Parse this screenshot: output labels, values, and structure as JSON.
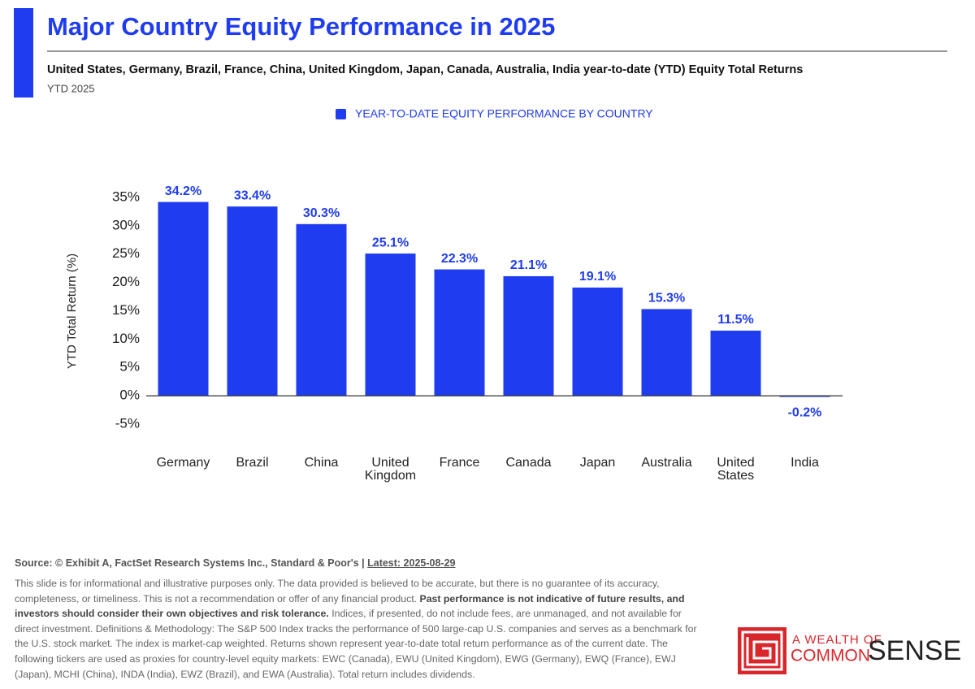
{
  "chart_data": {
    "type": "bar",
    "title": "Major Country Equity Performance in 2025",
    "subtitle": "United States, Germany, Brazil, France, China, United Kingdom, Japan, Canada, Australia, India year-to-date (YTD) Equity Total Returns",
    "period": "YTD 2025",
    "y_label": "YTD Total Return (%)",
    "categories": [
      "Germany",
      "Brazil",
      "China",
      "United Kingdom",
      "France",
      "Canada",
      "Japan",
      "Australia",
      "United States",
      "India"
    ],
    "series": [
      {
        "name": "YEAR-TO-DATE EQUITY PERFORMANCE BY COUNTRY",
        "color": "#1f3cf0",
        "values": [
          34.2,
          33.4,
          30.3,
          25.1,
          22.3,
          21.1,
          19.1,
          15.3,
          11.5,
          -0.2
        ],
        "value_labels": [
          "34.2%",
          "33.4%",
          "30.3%",
          "25.1%",
          "22.3%",
          "21.1%",
          "19.1%",
          "15.3%",
          "11.5%",
          "-0.2%"
        ]
      }
    ],
    "ylim": [
      -5,
      35
    ],
    "yticks": [
      {
        "value": -5,
        "label": "-5%"
      },
      {
        "value": 0,
        "label": "0%"
      },
      {
        "value": 5,
        "label": "5%"
      },
      {
        "value": 10,
        "label": "10%"
      },
      {
        "value": 15,
        "label": "15%"
      },
      {
        "value": 20,
        "label": "20%"
      },
      {
        "value": 25,
        "label": "25%"
      },
      {
        "value": 30,
        "label": "30%"
      },
      {
        "value": 35,
        "label": "35%"
      }
    ],
    "grid": false,
    "legend": "top"
  },
  "footer": {
    "source": "Source: © Exhibit A, FactSet Research Systems Inc., Standard & Poor's |",
    "latest": "Latest: 2025-08-29",
    "disclaimer_1": "This slide is for informational and illustrative purposes only. The data provided is believed to be accurate, but there is no guarantee of its accuracy, completeness, or timeliness. This is not a recommendation or offer of any financial product.",
    "disclaimer_bold": "Past performance is not indicative of future results, and investors should consider their own objectives and risk tolerance.",
    "disclaimer_2": "Indices, if presented, do not include fees, are unmanaged, and not available for direct investment. Definitions & Methodology: The S&P 500 Index tracks the performance of 500 large-cap U.S. companies and serves as a benchmark for the U.S. stock market. The index is market-cap weighted. Returns shown represent year-to-date total return performance as of the current date. The following tickers are used as proxies for country-level equity markets: EWC (Canada), EWU (United Kingdom), EWG (Germany), EWQ (France), EWJ (Japan), MCHI (China), INDA (India), EWZ (Brazil), and EWA (Australia). Total return includes dividends."
  },
  "logo": {
    "line1": "A WEALTH OF",
    "common": "COMMON",
    "sense": "SENSE"
  }
}
